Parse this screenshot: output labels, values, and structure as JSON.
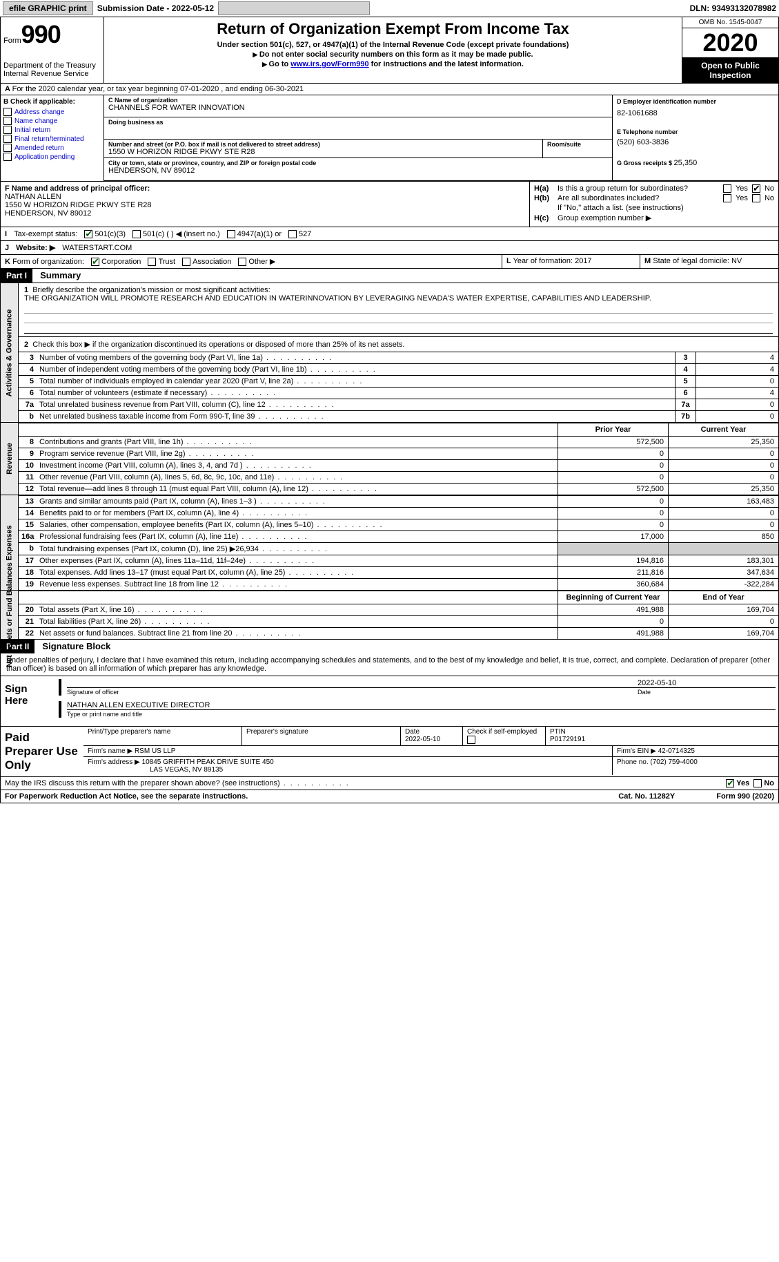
{
  "topbar": {
    "efile": "efile GRAPHIC print",
    "submission_label": "Submission Date - ",
    "submission_date": "2022-05-12",
    "dln_label": "DLN: ",
    "dln": "93493132078982"
  },
  "header": {
    "form_word": "Form",
    "form_num": "990",
    "dept": "Department of the Treasury\nInternal Revenue Service",
    "title": "Return of Organization Exempt From Income Tax",
    "sub1": "Under section 501(c), 527, or 4947(a)(1) of the Internal Revenue Code (except private foundations)",
    "sub2": "Do not enter social security numbers on this form as it may be made public.",
    "sub3_pre": "Go to ",
    "sub3_link": "www.irs.gov/Form990",
    "sub3_post": " for instructions and the latest information.",
    "omb": "OMB No. 1545-0047",
    "year": "2020",
    "inspection": "Open to Public Inspection"
  },
  "row_a": "For the 2020 calendar year, or tax year beginning 07-01-2020     , and ending 06-30-2021",
  "box_b": {
    "label": "B Check if applicable:",
    "items": [
      "Address change",
      "Name change",
      "Initial return",
      "Final return/terminated",
      "Amended return",
      "Application pending"
    ]
  },
  "box_c": {
    "name_label": "C Name of organization",
    "name": "CHANNELS FOR WATER INNOVATION",
    "dba_label": "Doing business as",
    "dba": "",
    "street_label": "Number and street (or P.O. box if mail is not delivered to street address)",
    "room_label": "Room/suite",
    "street": "1550 W HORIZON RIDGE PKWY STE R28",
    "city_label": "City or town, state or province, country, and ZIP or foreign postal code",
    "city": "HENDERSON, NV  89012"
  },
  "box_d": {
    "label": "D Employer identification number",
    "value": "82-1061688"
  },
  "box_e": {
    "label": "E Telephone number",
    "value": "(520) 603-3836"
  },
  "box_g": {
    "label": "G Gross receipts $ ",
    "value": "25,350"
  },
  "box_f": {
    "label": "F  Name and address of principal officer:",
    "name": "NATHAN ALLEN",
    "addr1": "1550 W HORIZON RIDGE PKWY STE R28",
    "addr2": "HENDERSON, NV  89012"
  },
  "box_h": {
    "ha_label": "H(a)",
    "ha_text": "Is this a group return for subordinates?",
    "hb_label": "H(b)",
    "hb_text": "Are all subordinates included?",
    "h_note": "If \"No,\" attach a list. (see instructions)",
    "hc_label": "H(c)",
    "hc_text": "Group exemption number ▶",
    "yes": "Yes",
    "no": "No"
  },
  "row_i": {
    "label": "I",
    "text": "Tax-exempt status:",
    "opt1": "501(c)(3)",
    "opt2": "501(c) (   ) ◀ (insert no.)",
    "opt3": "4947(a)(1) or",
    "opt4": "527"
  },
  "row_j": {
    "label": "J",
    "text": "Website: ▶",
    "value": "WATERSTART.COM"
  },
  "row_k": {
    "label": "K",
    "text": "Form of organization:",
    "opts": [
      "Corporation",
      "Trust",
      "Association",
      "Other ▶"
    ]
  },
  "row_l": {
    "label": "L",
    "text": "Year of formation: ",
    "value": "2017"
  },
  "row_m": {
    "label": "M",
    "text": "State of legal domicile: ",
    "value": "NV"
  },
  "part1": {
    "header": "Part I",
    "title": "Summary",
    "line1_label": "1",
    "line1_text": "Briefly describe the organization's mission or most significant activities:",
    "line1_value": "THE ORGANIZATION WILL PROMOTE RESEARCH AND EDUCATION IN WATERINNOVATION BY LEVERAGING NEVADA'S WATER EXPERTISE, CAPABILITIES AND LEADERSHIP.",
    "line2_label": "2",
    "line2_text": "Check this box ▶       if the organization discontinued its operations or disposed of more than 25% of its net assets.",
    "vtab1": "Activities & Governance",
    "vtab2": "Revenue",
    "vtab3": "Expenses",
    "vtab4": "Net Assets or Fund Balances",
    "gov_lines": [
      {
        "n": "3",
        "d": "Number of voting members of the governing body (Part VI, line 1a)",
        "b": "3",
        "v": "4"
      },
      {
        "n": "4",
        "d": "Number of independent voting members of the governing body (Part VI, line 1b)",
        "b": "4",
        "v": "4"
      },
      {
        "n": "5",
        "d": "Total number of individuals employed in calendar year 2020 (Part V, line 2a)",
        "b": "5",
        "v": "0"
      },
      {
        "n": "6",
        "d": "Total number of volunteers (estimate if necessary)",
        "b": "6",
        "v": "4"
      },
      {
        "n": "7a",
        "d": "Total unrelated business revenue from Part VIII, column (C), line 12",
        "b": "7a",
        "v": "0"
      },
      {
        "n": "b",
        "d": "Net unrelated business taxable income from Form 990-T, line 39",
        "b": "7b",
        "v": "0"
      }
    ],
    "col_prior": "Prior Year",
    "col_current": "Current Year",
    "rev_lines": [
      {
        "n": "8",
        "d": "Contributions and grants (Part VIII, line 1h)",
        "p": "572,500",
        "c": "25,350"
      },
      {
        "n": "9",
        "d": "Program service revenue (Part VIII, line 2g)",
        "p": "0",
        "c": "0"
      },
      {
        "n": "10",
        "d": "Investment income (Part VIII, column (A), lines 3, 4, and 7d )",
        "p": "0",
        "c": "0"
      },
      {
        "n": "11",
        "d": "Other revenue (Part VIII, column (A), lines 5, 6d, 8c, 9c, 10c, and 11e)",
        "p": "0",
        "c": "0"
      },
      {
        "n": "12",
        "d": "Total revenue—add lines 8 through 11 (must equal Part VIII, column (A), line 12)",
        "p": "572,500",
        "c": "25,350"
      }
    ],
    "exp_lines": [
      {
        "n": "13",
        "d": "Grants and similar amounts paid (Part IX, column (A), lines 1–3 )",
        "p": "0",
        "c": "163,483"
      },
      {
        "n": "14",
        "d": "Benefits paid to or for members (Part IX, column (A), line 4)",
        "p": "0",
        "c": "0"
      },
      {
        "n": "15",
        "d": "Salaries, other compensation, employee benefits (Part IX, column (A), lines 5–10)",
        "p": "0",
        "c": "0"
      },
      {
        "n": "16a",
        "d": "Professional fundraising fees (Part IX, column (A), line 11e)",
        "p": "17,000",
        "c": "850"
      },
      {
        "n": "b",
        "d": "Total fundraising expenses (Part IX, column (D), line 25) ▶26,934",
        "p": "",
        "c": "",
        "shaded": true
      },
      {
        "n": "17",
        "d": "Other expenses (Part IX, column (A), lines 11a–11d, 11f–24e)",
        "p": "194,816",
        "c": "183,301"
      },
      {
        "n": "18",
        "d": "Total expenses. Add lines 13–17 (must equal Part IX, column (A), line 25)",
        "p": "211,816",
        "c": "347,634"
      },
      {
        "n": "19",
        "d": "Revenue less expenses. Subtract line 18 from line 12",
        "p": "360,684",
        "c": "-322,284"
      }
    ],
    "col_begin": "Beginning of Current Year",
    "col_end": "End of Year",
    "net_lines": [
      {
        "n": "20",
        "d": "Total assets (Part X, line 16)",
        "p": "491,988",
        "c": "169,704"
      },
      {
        "n": "21",
        "d": "Total liabilities (Part X, line 26)",
        "p": "0",
        "c": "0"
      },
      {
        "n": "22",
        "d": "Net assets or fund balances. Subtract line 21 from line 20",
        "p": "491,988",
        "c": "169,704"
      }
    ]
  },
  "part2": {
    "header": "Part II",
    "title": "Signature Block",
    "declaration": "Under penalties of perjury, I declare that I have examined this return, including accompanying schedules and statements, and to the best of my knowledge and belief, it is true, correct, and complete. Declaration of preparer (other than officer) is based on all information of which preparer has any knowledge."
  },
  "sign": {
    "left": "Sign Here",
    "date": "2022-05-10",
    "sig_label": "Signature of officer",
    "date_label": "Date",
    "name": "NATHAN ALLEN  EXECUTIVE DIRECTOR",
    "name_label": "Type or print name and title"
  },
  "preparer": {
    "left": "Paid Preparer Use Only",
    "h1": "Print/Type preparer's name",
    "h2": "Preparer's signature",
    "h3": "Date",
    "h3v": "2022-05-10",
    "h4": "Check        if self-employed",
    "h5": "PTIN",
    "h5v": "P01729191",
    "firm_label": "Firm's name    ▶ ",
    "firm": "RSM US LLP",
    "ein_label": "Firm's EIN ▶ ",
    "ein": "42-0714325",
    "addr_label": "Firm's address ▶ ",
    "addr1": "10845 GRIFFITH PEAK DRIVE SUITE 450",
    "addr2": "LAS VEGAS, NV  89135",
    "phone_label": "Phone no. ",
    "phone": "(702) 759-4000"
  },
  "footer": {
    "q": "May the IRS discuss this return with the preparer shown above? (see instructions)",
    "yes": "Yes",
    "no": "No",
    "paperwork": "For Paperwork Reduction Act Notice, see the separate instructions.",
    "cat": "Cat. No. 11282Y",
    "form": "Form 990 (2020)"
  }
}
